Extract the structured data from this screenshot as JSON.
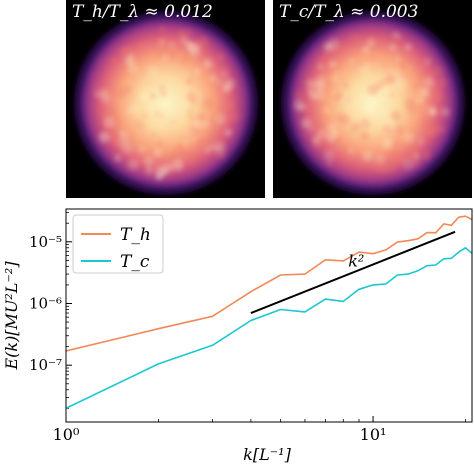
{
  "panels": [
    {
      "label": "T_h/T_λ ≈ 0.012",
      "colormap": "magma",
      "radius_frac": 0.45
    },
    {
      "label": "T_c/T_λ ≈ 0.003",
      "colormap": "magma",
      "radius_frac": 0.45
    }
  ],
  "chart_data": {
    "type": "line",
    "xscale": "log",
    "yscale": "log",
    "xlim": [
      1,
      21
    ],
    "ylim": [
      1.2e-08,
      3.4e-05
    ],
    "xlabel": "k[L⁻¹]",
    "ylabel": "E(k)[MU²L⁻²]",
    "xticks": [
      {
        "value": 1,
        "label": "10⁰"
      },
      {
        "value": 10,
        "label": "10¹"
      }
    ],
    "yticks": [
      {
        "value": 1e-05,
        "label": "10⁻⁵"
      },
      {
        "value": 1e-06,
        "label": "10⁻⁶"
      },
      {
        "value": 1e-07,
        "label": "10⁻⁷"
      }
    ],
    "legend": {
      "placement": "top-left"
    },
    "series": [
      {
        "name": "T_h",
        "color": "#f28a58",
        "x": [
          1,
          2,
          3,
          4,
          5,
          6,
          7,
          8,
          9,
          10,
          11,
          12,
          13,
          14,
          15,
          16,
          17,
          18,
          19,
          20,
          21
        ],
        "y": [
          1.7e-07,
          3.9e-07,
          6.2e-07,
          1.55e-06,
          2.9e-06,
          3e-06,
          5.1e-06,
          4.9e-06,
          6.8e-06,
          6.4e-06,
          7.4e-06,
          9.9e-06,
          1.04e-05,
          1.12e-05,
          1.41e-05,
          1.4e-05,
          1.95e-05,
          1.85e-05,
          2.5e-05,
          2.6e-05,
          2.3e-05
        ]
      },
      {
        "name": "T_c",
        "color": "#1cc7cf",
        "x": [
          1,
          2,
          3,
          4,
          5,
          6,
          7,
          8,
          9,
          10,
          11,
          12,
          13,
          14,
          15,
          16,
          17,
          18,
          19,
          20,
          21
        ],
        "y": [
          2e-08,
          1.05e-07,
          2.1e-07,
          5.3e-07,
          8e-07,
          7.3e-07,
          1.18e-06,
          1.08e-06,
          1.7e-06,
          2e-06,
          2.07e-06,
          2.9e-06,
          3e-06,
          3.4e-06,
          4.1e-06,
          4.2e-06,
          5.3e-06,
          5.4e-06,
          6.8e-06,
          8e-06,
          6.5e-06
        ]
      }
    ],
    "annotations": [
      {
        "type": "line",
        "label": "k²",
        "color": "#000000",
        "x": [
          4,
          18.5
        ],
        "y": [
          7e-07,
          1.45e-05
        ],
        "label_x": 8.3,
        "label_y": 4.6e-06
      }
    ]
  }
}
